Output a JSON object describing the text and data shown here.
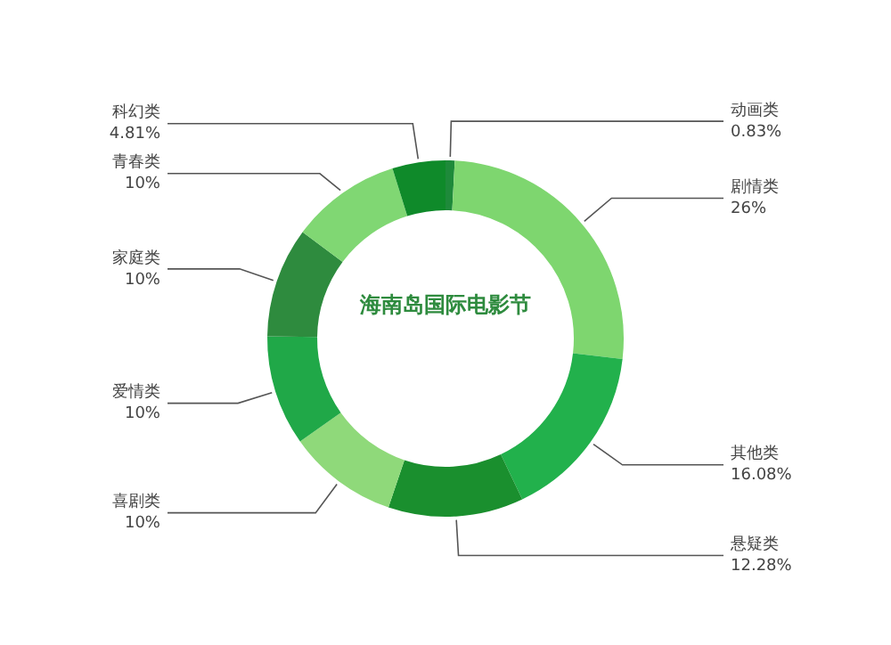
{
  "chart_data": {
    "type": "donut",
    "title": "海南岛国际电影节",
    "categories": [
      "动画类",
      "剧情类",
      "其他类",
      "悬疑类",
      "喜剧类",
      "爱情类",
      "家庭类",
      "青春类",
      "科幻类"
    ],
    "values": [
      0.83,
      26,
      16.08,
      12.28,
      10,
      10,
      10,
      10,
      4.81
    ],
    "value_labels": [
      "0.83%",
      "26%",
      "16.08%",
      "12.28%",
      "10%",
      "10%",
      "10%",
      "10%",
      "4.81%"
    ],
    "colors": [
      "#1e8a3a",
      "#7ed66f",
      "#22b14c",
      "#1a8f2e",
      "#8fd97a",
      "#20a848",
      "#2e8b3e",
      "#80d773",
      "#0f8a2a"
    ],
    "legend": false
  }
}
